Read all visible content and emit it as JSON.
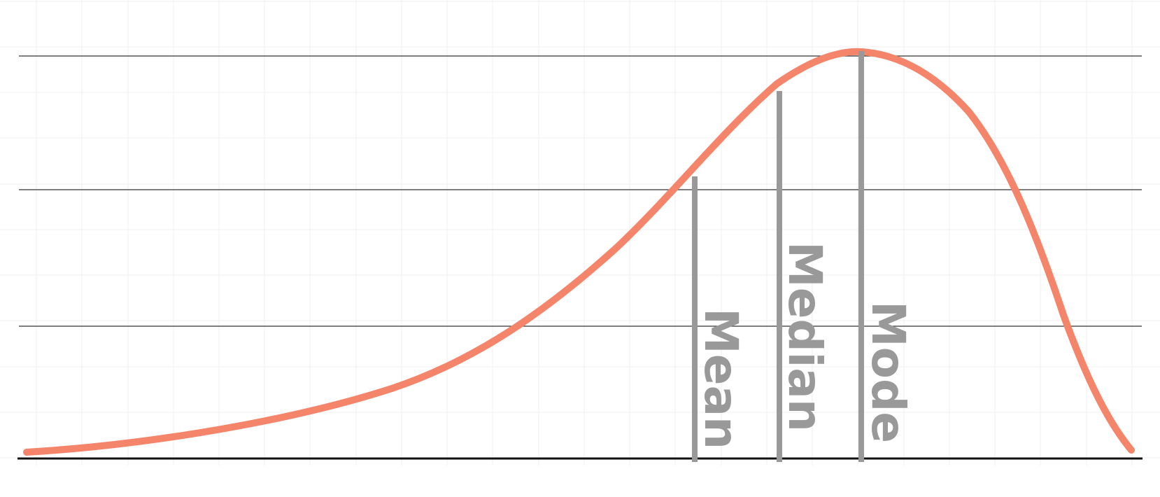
{
  "diagram": {
    "type": "left-skewed distribution",
    "curve_color": "#F4846A",
    "marker_color": "#999999",
    "labels": {
      "mean": "Mean",
      "median": "Median",
      "mode": "Mode"
    }
  }
}
